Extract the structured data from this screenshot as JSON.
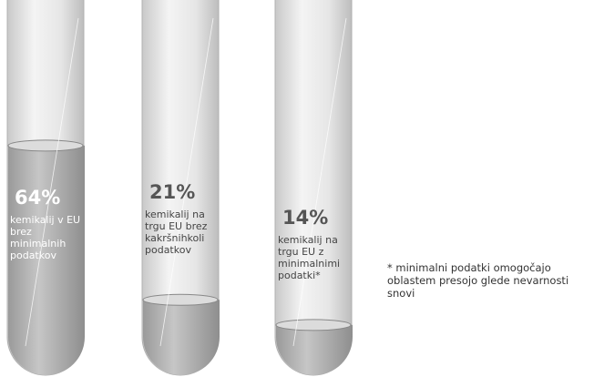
{
  "chart_data": {
    "type": "tube",
    "categories": [
      "kemikalij v EU brez minimalnih podatkov",
      "kemikalij na trgu EU brez kakršnihkoli podatkov",
      "kemikalij na trgu EU z minimalnimi podatki*"
    ],
    "values": [
      64,
      21,
      14
    ],
    "value_labels": [
      "64%",
      "21%",
      "14%"
    ],
    "ylim": [
      0,
      100
    ],
    "footnote": "* minimalni podatki omogočajo oblastem presojo glede nevarnosti snovi"
  }
}
